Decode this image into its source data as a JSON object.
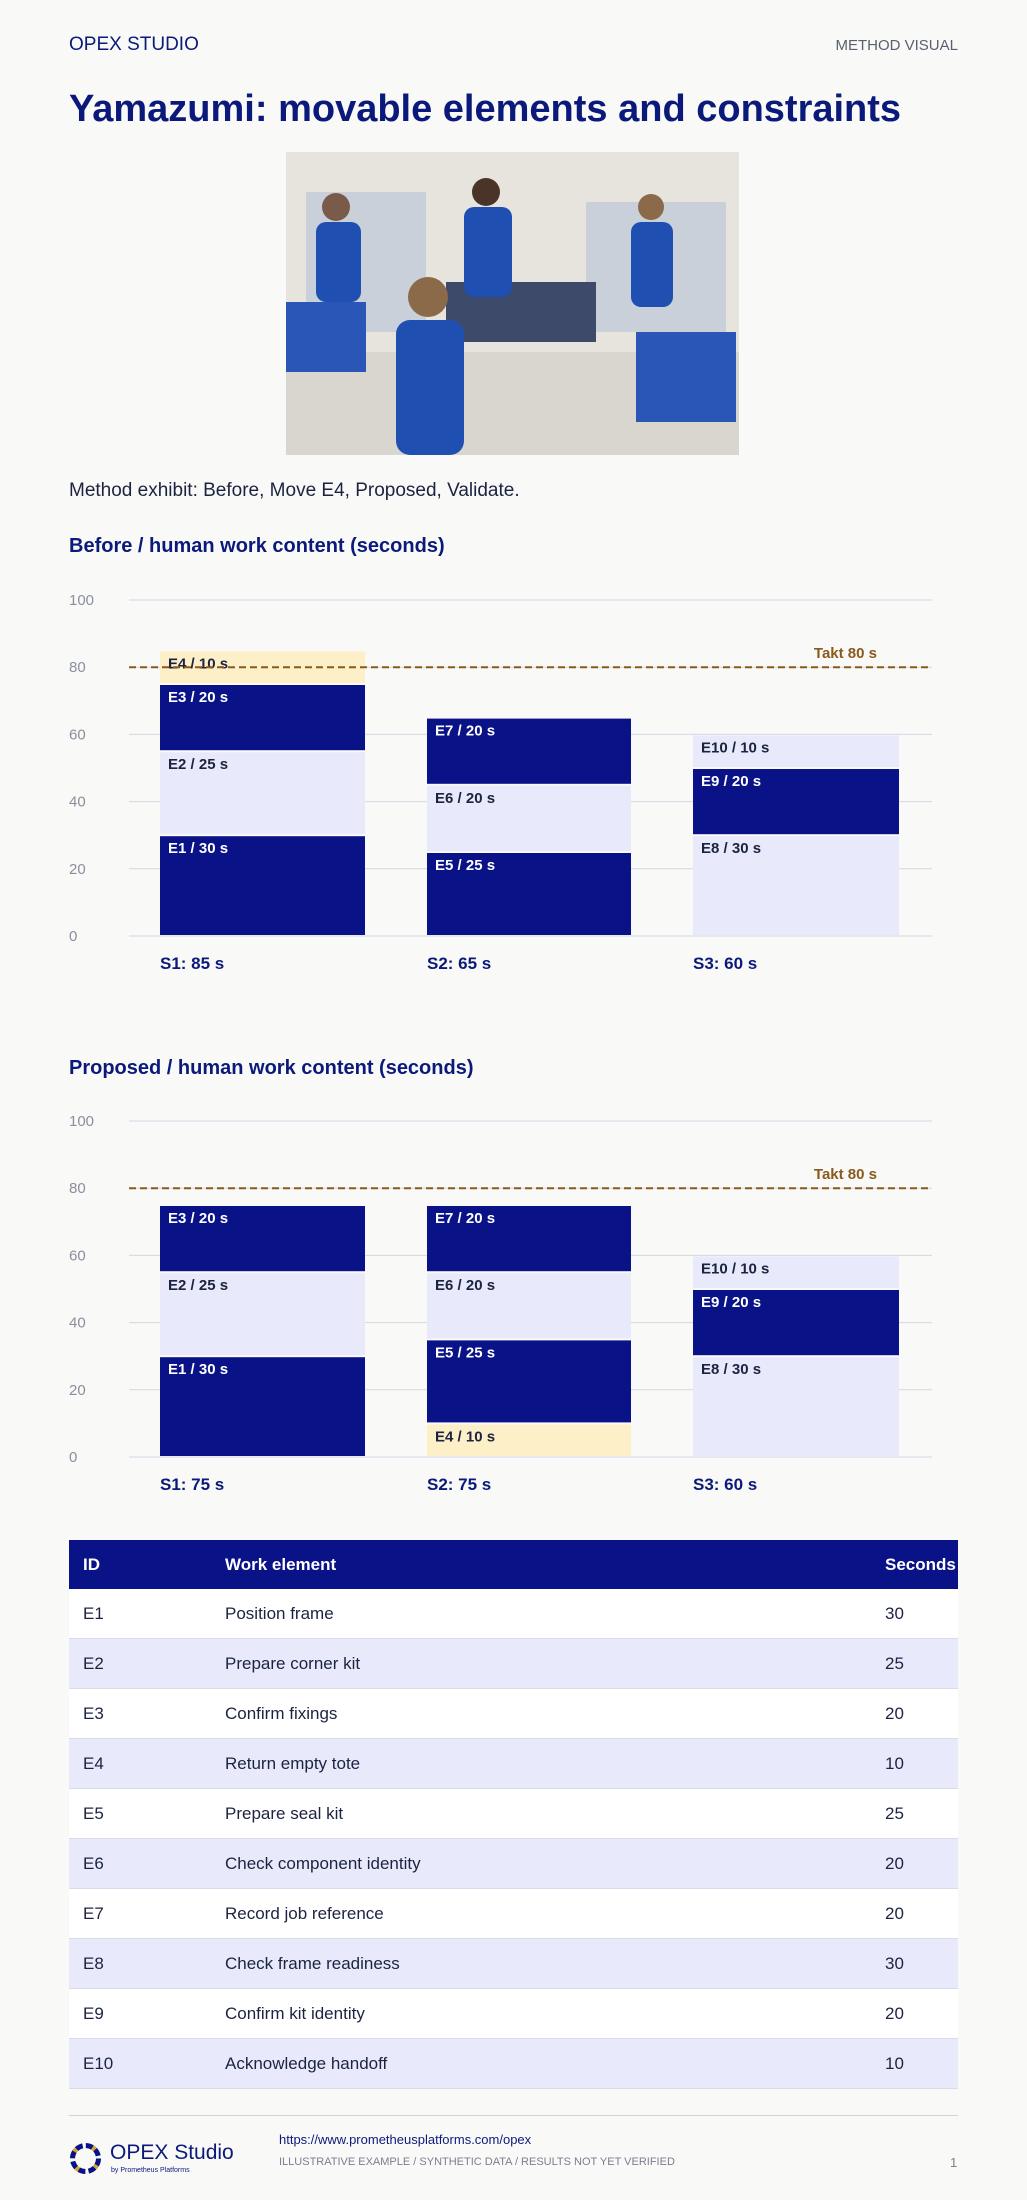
{
  "header": {
    "brand": "OPEX STUDIO",
    "tag": "METHOD VISUAL"
  },
  "title": "Yamazumi: movable elements and constraints",
  "caption": "Method exhibit: Before, Move E4, Proposed, Validate.",
  "chart_data": [
    {
      "type": "bar",
      "stacked": true,
      "title": "Before / human work content (seconds)",
      "categories": [
        "S1: 85 s",
        "S2: 65 s",
        "S3: 60 s"
      ],
      "segments": [
        [
          {
            "value": 30,
            "label": "E1 / 30 s",
            "color": "#0a1287"
          },
          {
            "value": 25,
            "label": "E2 / 25 s",
            "color": "#e8eafb"
          },
          {
            "value": 20,
            "label": "E3 / 20 s",
            "color": "#0a1287"
          },
          {
            "value": 10,
            "label": "E4 / 10 s",
            "color": "#fdf0c8"
          }
        ],
        [
          {
            "value": 25,
            "label": "E5 / 25 s",
            "color": "#0a1287"
          },
          {
            "value": 20,
            "label": "E6 / 20 s",
            "color": "#e8eafb"
          },
          {
            "value": 20,
            "label": "E7 / 20 s",
            "color": "#0a1287"
          }
        ],
        [
          {
            "value": 30,
            "label": "E8 / 30 s",
            "color": "#e8eafb"
          },
          {
            "value": 20,
            "label": "E9 / 20 s",
            "color": "#0a1287"
          },
          {
            "value": 10,
            "label": "E10 / 10 s",
            "color": "#e8eafb"
          }
        ]
      ],
      "takt": {
        "value": 80,
        "label": "Takt 80 s",
        "color": "#8a5a1c"
      },
      "ylim": [
        0,
        100
      ],
      "yticks": [
        0,
        20,
        40,
        60,
        80,
        100
      ],
      "grid": true
    },
    {
      "type": "bar",
      "stacked": true,
      "title": "Proposed / human work content (seconds)",
      "categories": [
        "S1: 75 s",
        "S2: 75 s",
        "S3: 60 s"
      ],
      "segments": [
        [
          {
            "value": 30,
            "label": "E1 / 30 s",
            "color": "#0a1287"
          },
          {
            "value": 25,
            "label": "E2 / 25 s",
            "color": "#e8eafb"
          },
          {
            "value": 20,
            "label": "E3 / 20 s",
            "color": "#0a1287"
          }
        ],
        [
          {
            "value": 10,
            "label": "E4 / 10 s",
            "color": "#fdf0c8"
          },
          {
            "value": 25,
            "label": "E5 / 25 s",
            "color": "#0a1287"
          },
          {
            "value": 20,
            "label": "E6 / 20 s",
            "color": "#e8eafb"
          },
          {
            "value": 20,
            "label": "E7 / 20 s",
            "color": "#0a1287"
          }
        ],
        [
          {
            "value": 30,
            "label": "E8 / 30 s",
            "color": "#e8eafb"
          },
          {
            "value": 20,
            "label": "E9 / 20 s",
            "color": "#0a1287"
          },
          {
            "value": 10,
            "label": "E10 / 10 s",
            "color": "#e8eafb"
          }
        ]
      ],
      "takt": {
        "value": 80,
        "label": "Takt 80 s",
        "color": "#8a5a1c"
      },
      "ylim": [
        0,
        100
      ],
      "yticks": [
        0,
        20,
        40,
        60,
        80,
        100
      ],
      "grid": true
    }
  ],
  "table": {
    "columns": [
      "ID",
      "Work element",
      "Seconds"
    ],
    "rows": [
      [
        "E1",
        "Position frame",
        30
      ],
      [
        "E2",
        "Prepare corner kit",
        25
      ],
      [
        "E3",
        "Confirm fixings",
        20
      ],
      [
        "E4",
        "Return empty tote",
        10
      ],
      [
        "E5",
        "Prepare seal kit",
        25
      ],
      [
        "E6",
        "Check component identity",
        20
      ],
      [
        "E7",
        "Record job reference",
        20
      ],
      [
        "E8",
        "Check frame readiness",
        30
      ],
      [
        "E9",
        "Confirm kit identity",
        20
      ],
      [
        "E10",
        "Acknowledge handoff",
        10
      ]
    ]
  },
  "footer": {
    "logo": "OPEX Studio",
    "logo_sub": "by Prometheus Platforms",
    "url": "https://www.prometheusplatforms.com/opex",
    "disclaimer": "ILLUSTRATIVE EXAMPLE / SYNTHETIC DATA / RESULTS NOT YET VERIFIED",
    "page": "1"
  }
}
